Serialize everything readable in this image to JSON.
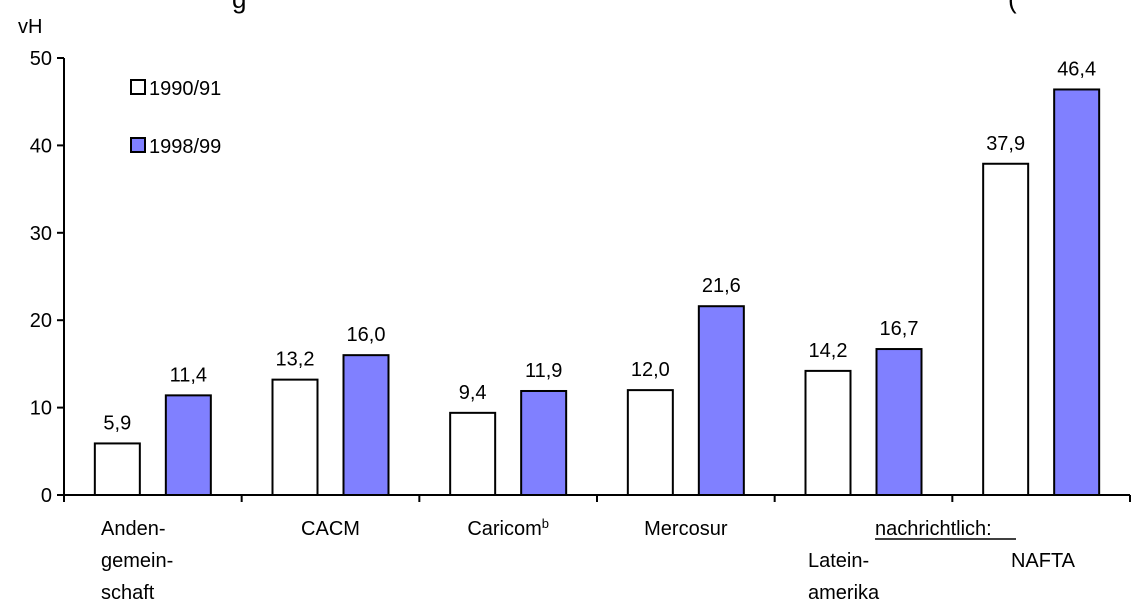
{
  "title_fragment": "g",
  "title_fragment_right": "(",
  "chart_data": {
    "type": "bar",
    "ylabel": "vH",
    "ylim": [
      0,
      50
    ],
    "yticks": [
      0,
      10,
      20,
      30,
      40,
      50
    ],
    "categories": [
      {
        "lines": [
          "Anden-",
          "gemein-",
          "schaft"
        ]
      },
      {
        "lines": [
          "CACM"
        ]
      },
      {
        "lines": [
          "Caricom"
        ],
        "superscript": "b"
      },
      {
        "lines": [
          "Mercosur"
        ]
      },
      {
        "lines": [
          "Latein-",
          "amerika"
        ]
      },
      {
        "lines": [
          "NAFTA"
        ]
      }
    ],
    "group_header": {
      "text": "nachrichtlich:",
      "underlined": true
    },
    "series": [
      {
        "name": "1990/91",
        "color": "#ffffff",
        "values": [
          5.9,
          13.2,
          9.4,
          12.0,
          14.2,
          37.9
        ],
        "labels": [
          "5,9",
          "13,2",
          "9,4",
          "12,0",
          "14,2",
          "37,9"
        ]
      },
      {
        "name": "1998/99",
        "color": "#8080ff",
        "values": [
          11.4,
          16.0,
          11.9,
          21.6,
          16.7,
          46.4
        ],
        "labels": [
          "11,4",
          "16,0",
          "11,9",
          "21,6",
          "16,7",
          "46,4"
        ]
      }
    ],
    "legend_position": "top-left",
    "grid": false
  }
}
